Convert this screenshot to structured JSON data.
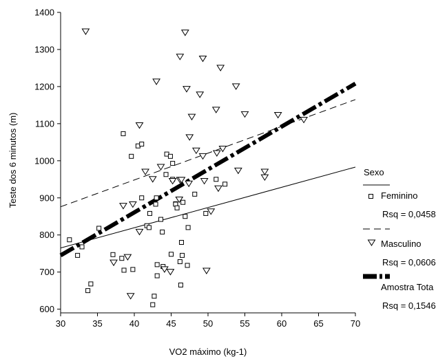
{
  "chart_data": {
    "type": "scatter",
    "title": "",
    "xlabel": "VO2 máximo (kg-1)",
    "ylabel": "Teste dos 6 minutos (m)",
    "xlim": [
      30,
      70
    ],
    "ylim": [
      590,
      1400
    ],
    "xticks": [
      30,
      35,
      40,
      45,
      50,
      55,
      60,
      65,
      70
    ],
    "yticks": [
      600,
      700,
      800,
      900,
      1000,
      1100,
      1200,
      1300,
      1400
    ],
    "grid": false,
    "legend": {
      "title": "Sexo",
      "placement": "right",
      "entries": [
        {
          "label": "Feminino",
          "kind": "line-solid"
        },
        {
          "label": "Feminino",
          "kind": "marker-square"
        },
        {
          "label": "Rsq = 0,0458",
          "kind": "text"
        },
        {
          "label": "",
          "kind": "line-dashed"
        },
        {
          "label": "Masculino",
          "kind": "marker-triangle"
        },
        {
          "label": "Rsq = 0,0606",
          "kind": "text"
        },
        {
          "label": "Amostra Tota",
          "kind": "line-dashdot"
        },
        {
          "label": "Rsq = 0,1546",
          "kind": "text"
        }
      ]
    },
    "series": [
      {
        "name": "Feminino",
        "marker": "square",
        "points": [
          [
            31.2,
            787
          ],
          [
            32.3,
            745
          ],
          [
            32.9,
            768
          ],
          [
            33.7,
            650
          ],
          [
            34.1,
            668
          ],
          [
            35.2,
            818
          ],
          [
            37.1,
            747
          ],
          [
            38.3,
            737
          ],
          [
            38.5,
            1073
          ],
          [
            38.6,
            705
          ],
          [
            39.6,
            1012
          ],
          [
            39.8,
            707
          ],
          [
            40.5,
            1040
          ],
          [
            41.0,
            900
          ],
          [
            41.0,
            1045
          ],
          [
            41.7,
            825
          ],
          [
            42.0,
            820
          ],
          [
            42.1,
            858
          ],
          [
            42.7,
            635
          ],
          [
            42.5,
            612
          ],
          [
            42.9,
            883
          ],
          [
            43.0,
            900
          ],
          [
            43.1,
            720
          ],
          [
            43.1,
            690
          ],
          [
            43.6,
            842
          ],
          [
            43.8,
            808
          ],
          [
            43.9,
            715
          ],
          [
            44.3,
            963
          ],
          [
            44.4,
            1018
          ],
          [
            44.9,
            1012
          ],
          [
            45.0,
            748
          ],
          [
            45.2,
            993
          ],
          [
            45.2,
            950
          ],
          [
            45.6,
            884
          ],
          [
            45.6,
            883
          ],
          [
            45.8,
            873
          ],
          [
            46.2,
            728
          ],
          [
            46.3,
            665
          ],
          [
            46.5,
            745
          ],
          [
            46.4,
            780
          ],
          [
            46.6,
            888
          ],
          [
            46.9,
            850
          ],
          [
            47.2,
            718
          ],
          [
            47.3,
            820
          ],
          [
            48.2,
            910
          ],
          [
            49.7,
            858
          ],
          [
            51.1,
            950
          ],
          [
            52.3,
            937
          ]
        ]
      },
      {
        "name": "Masculino",
        "marker": "triangle",
        "points": [
          [
            33.4,
            1348
          ],
          [
            37.2,
            725
          ],
          [
            38.5,
            878
          ],
          [
            39.1,
            740
          ],
          [
            39.5,
            635
          ],
          [
            39.8,
            882
          ],
          [
            40.7,
            1095
          ],
          [
            40.7,
            808
          ],
          [
            41.5,
            970
          ],
          [
            42.5,
            950
          ],
          [
            43.0,
            1213
          ],
          [
            43.6,
            983
          ],
          [
            44.1,
            707
          ],
          [
            44.9,
            700
          ],
          [
            45.2,
            945
          ],
          [
            46.2,
            1280
          ],
          [
            46.1,
            895
          ],
          [
            46.2,
            948
          ],
          [
            46.4,
            948
          ],
          [
            46.9,
            1345
          ],
          [
            47.1,
            1193
          ],
          [
            47.4,
            938
          ],
          [
            47.5,
            1063
          ],
          [
            47.8,
            1118
          ],
          [
            48.4,
            1027
          ],
          [
            48.9,
            1178
          ],
          [
            49.3,
            1275
          ],
          [
            49.3,
            1012
          ],
          [
            49.5,
            945
          ],
          [
            49.8,
            703
          ],
          [
            50.4,
            863
          ],
          [
            51.1,
            1137
          ],
          [
            51.2,
            1020
          ],
          [
            51.4,
            925
          ],
          [
            51.7,
            1250
          ],
          [
            52.0,
            1032
          ],
          [
            53.8,
            1200
          ],
          [
            54.1,
            973
          ],
          [
            55.0,
            1125
          ],
          [
            57.7,
            970
          ],
          [
            57.7,
            955
          ],
          [
            59.5,
            1123
          ],
          [
            63.0,
            1110
          ]
        ]
      }
    ],
    "fit_lines": [
      {
        "name": "Feminino",
        "style": "solid",
        "from": [
          30,
          765
        ],
        "to": [
          70,
          983
        ]
      },
      {
        "name": "Masculino",
        "style": "dashed",
        "from": [
          30,
          876
        ],
        "to": [
          70,
          1165
        ]
      },
      {
        "name": "Amostra Tota",
        "style": "dashdot-thick",
        "from": [
          30,
          745
        ],
        "to": [
          70,
          1208
        ]
      }
    ]
  }
}
